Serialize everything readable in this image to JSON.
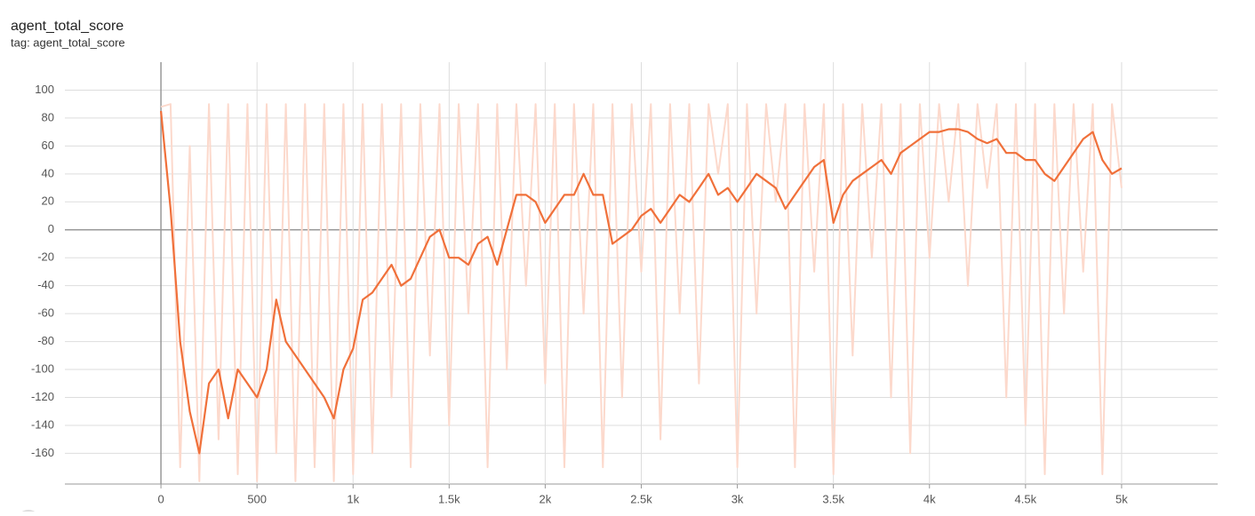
{
  "chart_data": {
    "type": "line",
    "title": "agent_total_score",
    "subtitle": "tag: agent_total_score",
    "x": [
      0,
      50,
      100,
      150,
      200,
      250,
      300,
      350,
      400,
      450,
      500,
      550,
      600,
      650,
      700,
      750,
      800,
      850,
      900,
      950,
      1000,
      1050,
      1100,
      1150,
      1200,
      1250,
      1300,
      1350,
      1400,
      1450,
      1500,
      1550,
      1600,
      1650,
      1700,
      1750,
      1800,
      1850,
      1900,
      1950,
      2000,
      2050,
      2100,
      2150,
      2200,
      2250,
      2300,
      2350,
      2400,
      2450,
      2500,
      2550,
      2600,
      2650,
      2700,
      2750,
      2800,
      2850,
      2900,
      2950,
      3000,
      3050,
      3100,
      3150,
      3200,
      3250,
      3300,
      3350,
      3400,
      3450,
      3500,
      3550,
      3600,
      3650,
      3700,
      3750,
      3800,
      3850,
      3900,
      3950,
      4000,
      4050,
      4100,
      4150,
      4200,
      4250,
      4300,
      4350,
      4400,
      4450,
      4500,
      4550,
      4600,
      4650,
      4700,
      4750,
      4800,
      4850,
      4900,
      4950,
      5000
    ],
    "series": [
      {
        "color": "#fcd9cc",
        "values": [
          88,
          90,
          -170,
          60,
          -180,
          90,
          -150,
          90,
          -175,
          90,
          -180,
          90,
          -160,
          90,
          -180,
          90,
          -170,
          90,
          -180,
          90,
          -175,
          90,
          -160,
          90,
          -120,
          90,
          -170,
          90,
          -90,
          90,
          -140,
          90,
          -60,
          90,
          -170,
          90,
          -100,
          90,
          -40,
          90,
          -110,
          90,
          -170,
          90,
          -60,
          90,
          -170,
          90,
          -120,
          90,
          -30,
          90,
          -150,
          90,
          -60,
          90,
          -110,
          90,
          40,
          90,
          -170,
          90,
          -60,
          90,
          20,
          90,
          -170,
          90,
          -30,
          90,
          -175,
          90,
          -90,
          90,
          -20,
          90,
          -120,
          90,
          -160,
          90,
          -20,
          90,
          20,
          90,
          -40,
          90,
          30,
          90,
          -120,
          90,
          -140,
          90,
          -175,
          90,
          -60,
          90,
          -30,
          90,
          -175,
          90,
          30
        ]
      },
      {
        "color": "#f0703a",
        "values": [
          85,
          15,
          -80,
          -130,
          -160,
          -110,
          -100,
          -135,
          -100,
          -110,
          -120,
          -100,
          -50,
          -80,
          -90,
          -100,
          -110,
          -120,
          -135,
          -100,
          -85,
          -50,
          -45,
          -35,
          -25,
          -40,
          -35,
          -20,
          -5,
          0,
          -20,
          -20,
          -25,
          -10,
          -5,
          -25,
          0,
          25,
          25,
          20,
          5,
          15,
          25,
          25,
          40,
          25,
          25,
          -10,
          -5,
          0,
          10,
          15,
          5,
          15,
          25,
          20,
          30,
          40,
          25,
          30,
          20,
          30,
          40,
          35,
          30,
          15,
          25,
          35,
          45,
          50,
          5,
          25,
          35,
          40,
          45,
          50,
          40,
          55,
          60,
          65,
          70,
          70,
          72,
          72,
          70,
          65,
          62,
          65,
          55,
          55,
          50,
          50,
          40,
          35,
          45,
          55,
          65,
          70,
          50,
          40,
          44
        ]
      }
    ],
    "xlim": [
      -500,
      5500
    ],
    "xticks": [
      0,
      500,
      {
        "value": 1000,
        "label": "1k"
      },
      {
        "value": 1500,
        "label": "1.5k"
      },
      {
        "value": 2000,
        "label": "2k"
      },
      {
        "value": 2500,
        "label": "2.5k"
      },
      {
        "value": 3000,
        "label": "3k"
      },
      {
        "value": 3500,
        "label": "3.5k"
      },
      {
        "value": 4000,
        "label": "4k"
      },
      {
        "value": 4500,
        "label": "4.5k"
      },
      {
        "value": 5000,
        "label": "5k"
      }
    ],
    "ylim": [
      -182,
      120
    ],
    "yticks": [
      -160,
      -140,
      -120,
      -100,
      -80,
      -60,
      -40,
      -20,
      0,
      20,
      40,
      60,
      80,
      100
    ],
    "grid": true
  }
}
